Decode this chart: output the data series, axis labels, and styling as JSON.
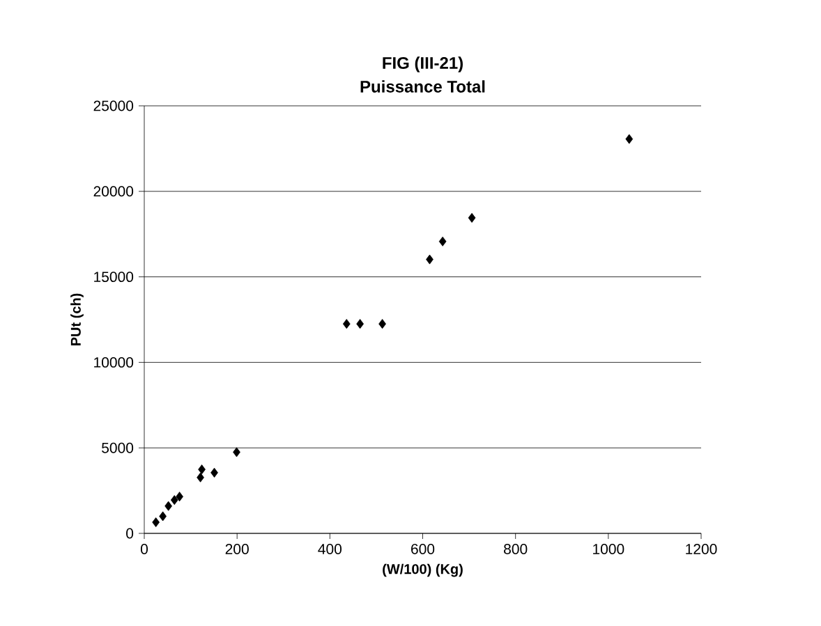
{
  "chart_data": {
    "type": "scatter",
    "title": "FIG (III-21)\nPuissance Total",
    "xlabel": "(W/100)  (Kg)",
    "ylabel": "PUt (ch)",
    "x": [
      25,
      40,
      52,
      65,
      76,
      121,
      124,
      151,
      199,
      436,
      465,
      513,
      615,
      643,
      706,
      1045
    ],
    "values": [
      650,
      1000,
      1600,
      1950,
      2150,
      3270,
      3740,
      3550,
      4750,
      12250,
      12250,
      12250,
      16020,
      17070,
      18450,
      23060
    ],
    "color": "#000000",
    "marker": "diamond",
    "xlim": [
      0,
      1200
    ],
    "xticks": [
      0,
      200,
      400,
      600,
      800,
      1000,
      1200
    ],
    "ylim": [
      0,
      25000
    ],
    "yticks": [
      0,
      5000,
      10000,
      15000,
      20000,
      25000
    ],
    "grid": "y"
  }
}
